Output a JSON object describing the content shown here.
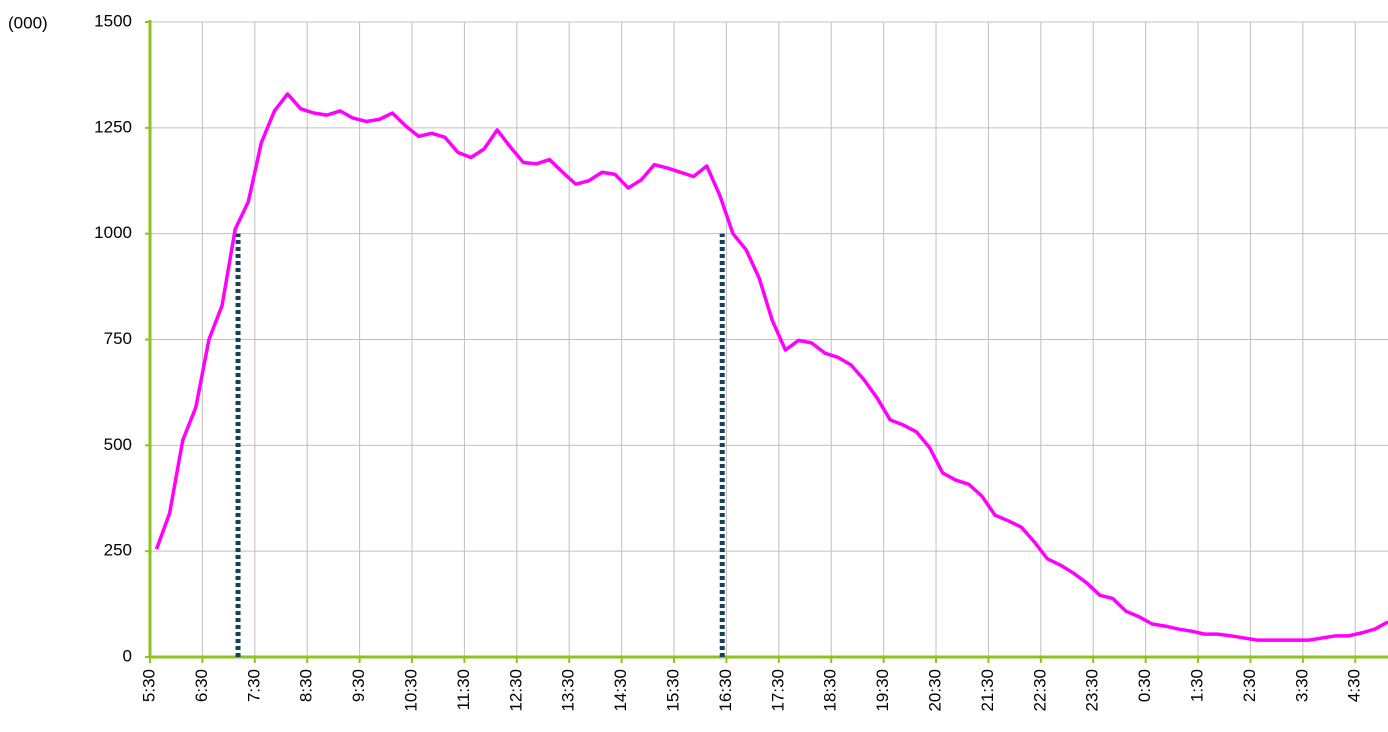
{
  "chart_data": {
    "type": "line",
    "y_label": "(000)",
    "x": [
      5.625,
      5.875,
      6.125,
      6.375,
      6.625,
      6.875,
      7.125,
      7.375,
      7.625,
      7.875,
      8.125,
      8.375,
      8.625,
      8.875,
      9.125,
      9.375,
      9.625,
      9.875,
      10.125,
      10.375,
      10.625,
      10.875,
      11.125,
      11.375,
      11.625,
      11.875,
      12.125,
      12.375,
      12.625,
      12.875,
      13.125,
      13.375,
      13.625,
      13.875,
      14.125,
      14.375,
      14.625,
      14.875,
      15.125,
      15.375,
      15.625,
      15.875,
      16.125,
      16.375,
      16.625,
      16.875,
      17.125,
      17.375,
      17.625,
      17.875,
      18.125,
      18.375,
      18.625,
      18.875,
      19.125,
      19.375,
      19.625,
      19.875,
      20.125,
      20.375,
      20.625,
      20.875,
      21.125,
      21.375,
      21.625,
      21.875,
      22.125,
      22.375,
      22.625,
      22.875,
      23.125,
      23.375,
      23.625,
      23.875,
      24.125,
      24.375,
      24.625,
      24.875,
      25.125,
      25.375,
      25.625,
      25.875,
      26.125,
      26.375,
      26.625,
      26.875,
      27.125,
      27.375,
      27.625,
      27.875,
      28.125,
      28.375,
      28.625,
      28.875,
      29.125
    ],
    "series": [
      {
        "color": "#ff00ff",
        "values": [
          255,
          340,
          512,
          590,
          750,
          830,
          1010,
          1075,
          1215,
          1290,
          1330,
          1295,
          1285,
          1280,
          1290,
          1273,
          1265,
          1270,
          1285,
          1255,
          1230,
          1237,
          1228,
          1192,
          1180,
          1200,
          1245,
          1205,
          1168,
          1165,
          1175,
          1145,
          1117,
          1125,
          1145,
          1140,
          1108,
          1127,
          1163,
          1155,
          1145,
          1135,
          1160,
          1090,
          1000,
          962,
          895,
          795,
          725,
          748,
          742,
          718,
          708,
          690,
          655,
          612,
          560,
          548,
          532,
          495,
          435,
          418,
          408,
          380,
          335,
          322,
          307,
          272,
          232,
          217,
          198,
          175,
          146,
          138,
          108,
          95,
          78,
          73,
          66,
          61,
          54,
          54,
          50,
          45,
          40,
          40,
          40,
          40,
          40,
          45,
          50,
          50,
          57,
          66,
          83
        ]
      }
    ],
    "markers": [
      {
        "x": 7.18,
        "y": 1000
      },
      {
        "x": 16.42,
        "y": 1000
      }
    ],
    "marker_color": "#17405f",
    "axis_color": "#8dc21f",
    "grid": true,
    "xlim": [
      5.5,
      29.125
    ],
    "xticks": [
      {
        "value": 5.5,
        "label": "5:30"
      },
      {
        "value": 6.5,
        "label": "6:30"
      },
      {
        "value": 7.5,
        "label": "7:30"
      },
      {
        "value": 8.5,
        "label": "8:30"
      },
      {
        "value": 9.5,
        "label": "9:30"
      },
      {
        "value": 10.5,
        "label": "10:30"
      },
      {
        "value": 11.5,
        "label": "11:30"
      },
      {
        "value": 12.5,
        "label": "12:30"
      },
      {
        "value": 13.5,
        "label": "13:30"
      },
      {
        "value": 14.5,
        "label": "14:30"
      },
      {
        "value": 15.5,
        "label": "15:30"
      },
      {
        "value": 16.5,
        "label": "16:30"
      },
      {
        "value": 17.5,
        "label": "17:30"
      },
      {
        "value": 18.5,
        "label": "18:30"
      },
      {
        "value": 19.5,
        "label": "19:30"
      },
      {
        "value": 20.5,
        "label": "20:30"
      },
      {
        "value": 21.5,
        "label": "21:30"
      },
      {
        "value": 22.5,
        "label": "22:30"
      },
      {
        "value": 23.5,
        "label": "23:30"
      },
      {
        "value": 24.5,
        "label": "0:30"
      },
      {
        "value": 25.5,
        "label": "1:30"
      },
      {
        "value": 26.5,
        "label": "2:30"
      },
      {
        "value": 27.5,
        "label": "3:30"
      },
      {
        "value": 28.5,
        "label": "4:30"
      }
    ],
    "ylim": [
      0,
      1500
    ],
    "yticks": [
      0,
      250,
      500,
      750,
      1000,
      1250,
      1500
    ]
  }
}
